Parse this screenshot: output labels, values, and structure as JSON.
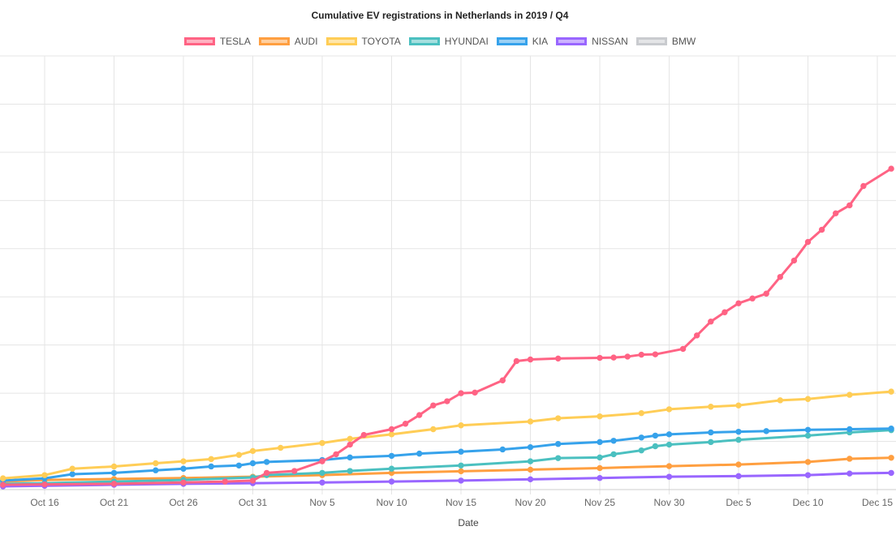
{
  "chart_data": {
    "type": "line",
    "title": "Cumulative EV registrations in Netherlands in 2019 / Q4",
    "xlabel": "Date",
    "ylabel": "",
    "grid": true,
    "legend_position": "top",
    "x_ticks": [
      "Oct 16",
      "Oct 21",
      "Oct 26",
      "Oct 31",
      "Nov 5",
      "Nov 10",
      "Nov 15",
      "Nov 20",
      "Nov 25",
      "Nov 30",
      "Dec 5",
      "Dec 10",
      "Dec 15"
    ],
    "series": [
      {
        "name": "TESLA",
        "color": "#ff6384",
        "points": [
          [
            "Oct 13",
            15
          ],
          [
            "Oct 16",
            16
          ],
          [
            "Oct 21",
            18
          ],
          [
            "Oct 26",
            22
          ],
          [
            "Oct 29",
            25
          ],
          [
            "Oct 31",
            28
          ],
          [
            "Nov 1",
            52
          ],
          [
            "Nov 3",
            58
          ],
          [
            "Nov 5",
            88
          ],
          [
            "Nov 6",
            110
          ],
          [
            "Nov 7",
            140
          ],
          [
            "Nov 8",
            170
          ],
          [
            "Nov 10",
            188
          ],
          [
            "Nov 11",
            205
          ],
          [
            "Nov 12",
            232
          ],
          [
            "Nov 13",
            262
          ],
          [
            "Nov 14",
            275
          ],
          [
            "Nov 15",
            300
          ],
          [
            "Nov 16",
            302
          ],
          [
            "Nov 18",
            340
          ],
          [
            "Nov 19",
            400
          ],
          [
            "Nov 20",
            405
          ],
          [
            "Nov 22",
            408
          ],
          [
            "Nov 25",
            410
          ],
          [
            "Nov 26",
            411
          ],
          [
            "Nov 27",
            414
          ],
          [
            "Nov 28",
            420
          ],
          [
            "Nov 29",
            421
          ],
          [
            "Dec 1",
            438
          ],
          [
            "Dec 2",
            480
          ],
          [
            "Dec 3",
            523
          ],
          [
            "Dec 4",
            552
          ],
          [
            "Dec 5",
            580
          ],
          [
            "Dec 6",
            595
          ],
          [
            "Dec 7",
            610
          ],
          [
            "Dec 8",
            662
          ],
          [
            "Dec 9",
            713
          ],
          [
            "Dec 10",
            771
          ],
          [
            "Dec 11",
            809
          ],
          [
            "Dec 12",
            860
          ],
          [
            "Dec 13",
            885
          ],
          [
            "Dec 14",
            945
          ],
          [
            "Dec 16",
            999
          ]
        ]
      },
      {
        "name": "AUDI",
        "color": "#ff9f40",
        "points": [
          [
            "Oct 13",
            25
          ],
          [
            "Oct 16",
            30
          ],
          [
            "Oct 21",
            33
          ],
          [
            "Oct 26",
            36
          ],
          [
            "Oct 31",
            40
          ],
          [
            "Nov 5",
            45
          ],
          [
            "Nov 10",
            52
          ],
          [
            "Nov 15",
            57
          ],
          [
            "Nov 20",
            62
          ],
          [
            "Nov 25",
            67
          ],
          [
            "Nov 30",
            73
          ],
          [
            "Dec 5",
            78
          ],
          [
            "Dec 10",
            86
          ],
          [
            "Dec 13",
            96
          ],
          [
            "Dec 16",
            99
          ]
        ]
      },
      {
        "name": "TOYOTA",
        "color": "#ffcd56",
        "points": [
          [
            "Oct 13",
            35
          ],
          [
            "Oct 16",
            45
          ],
          [
            "Oct 18",
            65
          ],
          [
            "Oct 21",
            72
          ],
          [
            "Oct 24",
            82
          ],
          [
            "Oct 26",
            88
          ],
          [
            "Oct 28",
            95
          ],
          [
            "Oct 30",
            108
          ],
          [
            "Oct 31",
            120
          ],
          [
            "Nov 2",
            130
          ],
          [
            "Nov 5",
            145
          ],
          [
            "Nov 7",
            158
          ],
          [
            "Nov 10",
            172
          ],
          [
            "Nov 13",
            188
          ],
          [
            "Nov 15",
            200
          ],
          [
            "Nov 20",
            212
          ],
          [
            "Nov 22",
            222
          ],
          [
            "Nov 25",
            228
          ],
          [
            "Nov 28",
            238
          ],
          [
            "Nov 30",
            250
          ],
          [
            "Dec 3",
            258
          ],
          [
            "Dec 5",
            262
          ],
          [
            "Dec 8",
            278
          ],
          [
            "Dec 10",
            282
          ],
          [
            "Dec 13",
            295
          ],
          [
            "Dec 16",
            305
          ]
        ]
      },
      {
        "name": "HYUNDAI",
        "color": "#4bc0c0",
        "points": [
          [
            "Oct 13",
            18
          ],
          [
            "Oct 16",
            20
          ],
          [
            "Oct 21",
            25
          ],
          [
            "Oct 26",
            30
          ],
          [
            "Oct 31",
            38
          ],
          [
            "Nov 1",
            45
          ],
          [
            "Nov 5",
            52
          ],
          [
            "Nov 7",
            58
          ],
          [
            "Nov 10",
            65
          ],
          [
            "Nov 15",
            75
          ],
          [
            "Nov 20",
            88
          ],
          [
            "Nov 22",
            98
          ],
          [
            "Nov 25",
            100
          ],
          [
            "Nov 26",
            110
          ],
          [
            "Nov 28",
            122
          ],
          [
            "Nov 29",
            135
          ],
          [
            "Nov 30",
            140
          ],
          [
            "Dec 3",
            148
          ],
          [
            "Dec 5",
            155
          ],
          [
            "Dec 10",
            168
          ],
          [
            "Dec 13",
            178
          ],
          [
            "Dec 16",
            185
          ]
        ]
      },
      {
        "name": "KIA",
        "color": "#36a2eb",
        "points": [
          [
            "Oct 13",
            28
          ],
          [
            "Oct 16",
            35
          ],
          [
            "Oct 18",
            48
          ],
          [
            "Oct 21",
            52
          ],
          [
            "Oct 24",
            60
          ],
          [
            "Oct 26",
            65
          ],
          [
            "Oct 28",
            72
          ],
          [
            "Oct 30",
            75
          ],
          [
            "Oct 31",
            82
          ],
          [
            "Nov 1",
            86
          ],
          [
            "Nov 5",
            92
          ],
          [
            "Nov 7",
            100
          ],
          [
            "Nov 10",
            105
          ],
          [
            "Nov 12",
            112
          ],
          [
            "Nov 15",
            118
          ],
          [
            "Nov 18",
            125
          ],
          [
            "Nov 20",
            132
          ],
          [
            "Nov 22",
            142
          ],
          [
            "Nov 25",
            148
          ],
          [
            "Nov 26",
            152
          ],
          [
            "Nov 28",
            162
          ],
          [
            "Nov 29",
            168
          ],
          [
            "Nov 30",
            172
          ],
          [
            "Dec 3",
            178
          ],
          [
            "Dec 5",
            180
          ],
          [
            "Dec 7",
            182
          ],
          [
            "Dec 10",
            186
          ],
          [
            "Dec 13",
            188
          ],
          [
            "Dec 16",
            190
          ]
        ]
      },
      {
        "name": "NISSAN",
        "color": "#9966ff",
        "points": [
          [
            "Oct 13",
            10
          ],
          [
            "Oct 16",
            12
          ],
          [
            "Oct 21",
            15
          ],
          [
            "Oct 26",
            18
          ],
          [
            "Oct 31",
            20
          ],
          [
            "Nov 5",
            22
          ],
          [
            "Nov 10",
            25
          ],
          [
            "Nov 15",
            28
          ],
          [
            "Nov 20",
            32
          ],
          [
            "Nov 25",
            36
          ],
          [
            "Nov 30",
            40
          ],
          [
            "Dec 5",
            42
          ],
          [
            "Dec 10",
            45
          ],
          [
            "Dec 13",
            50
          ],
          [
            "Dec 16",
            52
          ]
        ]
      },
      {
        "name": "BMW",
        "color": "#c9cbcf",
        "points": []
      }
    ]
  }
}
